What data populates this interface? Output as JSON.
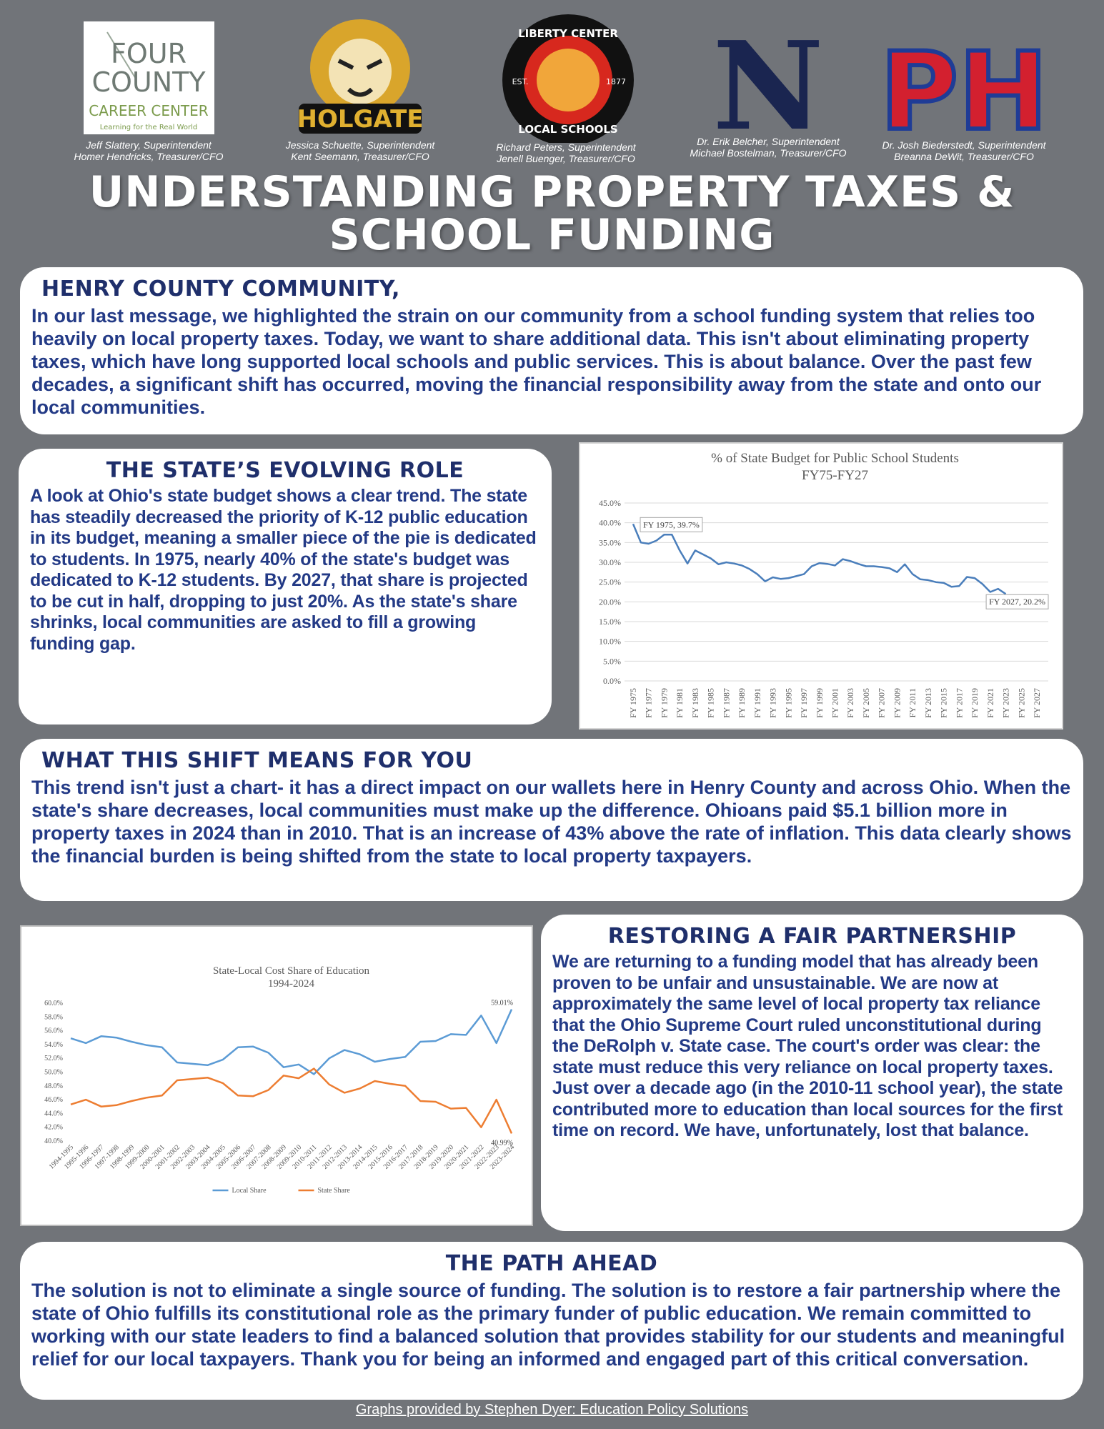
{
  "logos": [
    [
      "FOUR",
      "COUNTY",
      "CAREER CENTER",
      "Learning for the Real World"
    ],
    [
      "HOLGATE"
    ],
    [
      "LIBERTY CENTER",
      "EST.",
      "1877",
      "LOCAL SCHOOLS"
    ],
    [
      "N"
    ],
    [
      "PH"
    ]
  ],
  "leaders": [
    [
      "Jeff Slattery, Superintendent",
      "Homer Hendricks, Treasurer/CFO"
    ],
    [
      "Jessica Schuette, Superintendent",
      "Kent Seemann, Treasurer/CFO"
    ],
    [
      "Richard Peters, Superintendent",
      "Jenell Buenger, Treasurer/CFO"
    ],
    [
      "Dr. Erik Belcher, Superintendent",
      "Michael Bostelman, Treasurer/CFO"
    ],
    [
      "Dr. Josh Biederstedt, Superintendent",
      "Breanna DeWit, Treasurer/CFO"
    ]
  ],
  "title": [
    "UNDERSTANDING PROPERTY TAXES &",
    "SCHOOL FUNDING"
  ],
  "sections": [
    {
      "heading": "HENRY COUNTY COMMUNITY,",
      "body": "In our last message, we highlighted the strain on our community from a school funding system that relies too heavily on local property taxes. Today, we want to share additional data. This isn't about eliminating property taxes, which have long supported local schools and public services. This is about balance. Over the past few decades, a significant shift has occurred, moving the financial responsibility away from the state and onto our local communities."
    },
    {
      "heading": "THE STATE’S EVOLVING ROLE",
      "body": "A look at Ohio's state budget shows a clear trend. The state has steadily decreased the priority of K-12 public education in its budget, meaning a smaller piece of the pie is dedicated to students. In 1975, nearly 40% of the state's budget was dedicated to K-12 students. By 2027, that share is projected to be cut in half, dropping to just 20%. As the state's share shrinks, local communities are asked to fill a growing funding gap."
    },
    {
      "heading": "WHAT THIS SHIFT MEANS FOR YOU",
      "body": "This trend isn't just a chart- it has a direct impact on our wallets here in Henry County and across Ohio. When the state's share decreases, local communities must make up the difference. Ohioans paid $5.1 billion more in property taxes in 2024 than in 2010. That is an increase of 43% above the rate of inflation. This data clearly shows the financial burden is being shifted from the state to local property taxpayers."
    },
    {
      "heading": "RESTORING A FAIR PARTNERSHIP",
      "body": "We are returning to a funding model that has already been proven to be unfair and unsustainable. We are now at approximately the same level of local property tax reliance that the Ohio Supreme Court ruled unconstitutional during the DeRolph v. State case. The court's order was clear: the state must reduce this very reliance on local property taxes. Just over a decade ago (in the 2010-11 school year), the state contributed more to education than local sources for the first time on record. We have, unfortunately, lost that balance."
    },
    {
      "heading": "THE PATH AHEAD",
      "body": "The solution is not to eliminate a single source of funding. The solution is to restore a fair partnership where the state of Ohio fulfills its constitutional role as the primary funder of public education. We remain committed to working with our state leaders to find a balanced solution that provides stability for our students and meaningful relief for our local taxpayers. Thank you for being an informed and engaged part of this critical conversation."
    }
  ],
  "footer": "Graphs provided by Stephen Dyer: Education Policy Solutions",
  "chart_data": [
    {
      "type": "line",
      "title": "% of State Budget for Public School Students",
      "subtitle": "FY75-FY27",
      "categories": [
        "FY 1975",
        null,
        "FY 1977",
        null,
        "FY 1979",
        null,
        "FY 1981",
        null,
        "FY 1983",
        null,
        "FY 1985",
        null,
        "FY 1987",
        null,
        "FY 1989",
        null,
        "FY 1991",
        null,
        "FY 1993",
        null,
        "FY 1995",
        null,
        "FY 1997",
        null,
        "FY 1999",
        null,
        "FY 2001",
        null,
        "FY 2003",
        null,
        "FY 2005",
        null,
        "FY 2007",
        null,
        "FY 2009",
        null,
        "FY 2011",
        null,
        "FY 2013",
        null,
        "FY 2015",
        null,
        "FY 2017",
        null,
        "FY 2019",
        null,
        "FY 2021",
        null,
        "FY 2023",
        null,
        "FY 2025",
        null,
        "FY 2027"
      ],
      "values": [
        39.7,
        35,
        34.7,
        35.5,
        37,
        37,
        33,
        29.7,
        33,
        32,
        31,
        29.5,
        30,
        29.7,
        29.2,
        28.3,
        27,
        25.2,
        26.2,
        25.8,
        26,
        26.5,
        27,
        29,
        29.8,
        29.6,
        29.2,
        30.8,
        30.3,
        29.6,
        29,
        29,
        28.8,
        28.5,
        27.5,
        29.5,
        27,
        25.7,
        25.5,
        25,
        24.8,
        23.8,
        24,
        26.3,
        26,
        24.5,
        22.5,
        23.3,
        22,
        null,
        null,
        null,
        20.2
      ],
      "value_labels": [
        "FY 1975, 39.7%",
        null,
        null,
        null,
        null,
        null,
        null,
        null,
        null,
        null,
        null,
        null,
        null,
        null,
        null,
        null,
        null,
        null,
        null,
        null,
        null,
        null,
        null,
        null,
        null,
        null,
        null,
        null,
        null,
        null,
        null,
        null,
        null,
        null,
        null,
        null,
        null,
        null,
        null,
        null,
        null,
        null,
        null,
        null,
        null,
        null,
        null,
        null,
        null,
        null,
        null,
        null,
        "FY 2027, 20.2%"
      ],
      "color": "#4a7ebb",
      "ylim": [
        0,
        45
      ],
      "yticks": [
        {
          "value": 0,
          "label": "0.0%"
        },
        {
          "value": 5,
          "label": "5.0%"
        },
        {
          "value": 10,
          "label": "10.0%"
        },
        {
          "value": 15,
          "label": "15.0%"
        },
        {
          "value": 20,
          "label": "20.0%"
        },
        {
          "value": 25,
          "label": "25.0%"
        },
        {
          "value": 30,
          "label": "30.0%"
        },
        {
          "value": 35,
          "label": "35.0%"
        },
        {
          "value": 40,
          "label": "40.0%"
        },
        {
          "value": 45,
          "label": "45.0%"
        }
      ],
      "grid": true
    },
    {
      "type": "line",
      "title": "State-Local Cost Share of Education",
      "subtitle": "1994-2024",
      "categories": [
        "1994-1995",
        "1995-1996",
        "1996-1997",
        "1997-1998",
        "1998-1999",
        "1999-2000",
        "2000-2001",
        "2001-2002",
        "2002-2003",
        "2003-2004",
        "2004-2005",
        "2005-2006",
        "2006-2007",
        "2007-2008",
        "2008-2009",
        "2009-2010",
        "2010-2011",
        "2011-2012",
        "2012-2013",
        "2013-2014",
        "2014-2015",
        "2015-2016",
        "2016-2017",
        "2017-2018",
        "2018-2019",
        "2019-2020",
        "2020-2021",
        "2021-2022",
        "2022-2023",
        "2023-2024"
      ],
      "series": [
        {
          "name": "Local Share",
          "color": "#5b9bd5",
          "values": [
            54.8,
            54.1,
            55.1,
            54.9,
            54.3,
            53.8,
            53.5,
            51.3,
            51.1,
            50.9,
            51.7,
            53.5,
            53.6,
            52.7,
            50.6,
            51.0,
            49.6,
            51.9,
            53.1,
            52.5,
            51.4,
            51.8,
            52.1,
            54.3,
            54.4,
            55.4,
            55.3,
            58.1,
            54.1,
            59.01
          ],
          "value_labels": [
            null,
            null,
            null,
            null,
            null,
            null,
            null,
            null,
            null,
            null,
            null,
            null,
            null,
            null,
            null,
            null,
            null,
            null,
            null,
            null,
            null,
            null,
            null,
            null,
            null,
            null,
            null,
            null,
            null,
            "59.01%"
          ]
        },
        {
          "name": "State Share",
          "color": "#ed7d31",
          "values": [
            45.2,
            45.9,
            44.9,
            45.1,
            45.7,
            46.2,
            46.5,
            48.7,
            48.9,
            49.1,
            48.3,
            46.5,
            46.4,
            47.3,
            49.4,
            49.0,
            50.4,
            48.1,
            46.9,
            47.5,
            48.6,
            48.2,
            47.9,
            45.7,
            45.6,
            44.6,
            44.7,
            41.9,
            45.9,
            40.99
          ],
          "value_labels": [
            null,
            null,
            null,
            null,
            null,
            null,
            null,
            null,
            null,
            null,
            null,
            null,
            null,
            null,
            null,
            null,
            null,
            null,
            null,
            null,
            null,
            null,
            null,
            null,
            null,
            null,
            null,
            null,
            null,
            "40.99%"
          ]
        }
      ],
      "ylim": [
        40,
        60
      ],
      "yticks": [
        {
          "value": 40,
          "label": "40.0%"
        },
        {
          "value": 42,
          "label": "42.0%"
        },
        {
          "value": 44,
          "label": "44.0%"
        },
        {
          "value": 46,
          "label": "46.0%"
        },
        {
          "value": 48,
          "label": "48.0%"
        },
        {
          "value": 50,
          "label": "50.0%"
        },
        {
          "value": 52,
          "label": "52.0%"
        },
        {
          "value": 54,
          "label": "54.0%"
        },
        {
          "value": 56,
          "label": "56.0%"
        },
        {
          "value": 58,
          "label": "58.0%"
        },
        {
          "value": 60,
          "label": "60.0%"
        }
      ],
      "grid": false,
      "legend": "bottom"
    }
  ]
}
